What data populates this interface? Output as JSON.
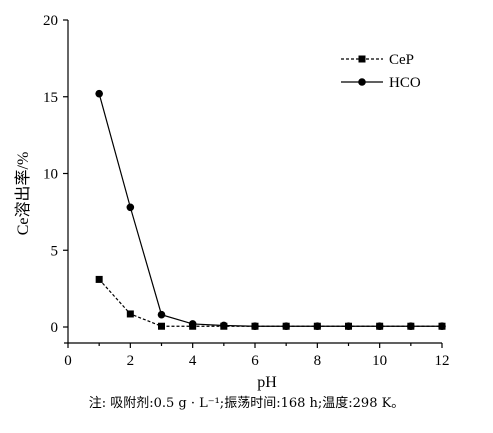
{
  "chart_data": {
    "type": "line",
    "xlabel": "pH",
    "ylabel": "Ce溶出率/%",
    "xlim": [
      0,
      12
    ],
    "ylim": [
      0,
      20
    ],
    "x_ticks": [
      0,
      2,
      4,
      6,
      8,
      10,
      12
    ],
    "y_ticks": [
      0,
      5,
      10,
      15,
      20
    ],
    "legend_position": "top-right",
    "grid": false,
    "series": [
      {
        "name": "CeP",
        "line_style": "dashed",
        "marker": "square",
        "x": [
          1,
          2,
          3,
          4,
          5,
          6,
          7,
          8,
          9,
          10,
          11,
          12
        ],
        "y": [
          3.1,
          0.85,
          0.05,
          0.05,
          0.05,
          0.05,
          0.05,
          0.05,
          0.05,
          0.05,
          0.05,
          0.05
        ]
      },
      {
        "name": "HCO",
        "line_style": "solid",
        "marker": "circle",
        "x": [
          1,
          2,
          3,
          4,
          5,
          6,
          7,
          8,
          9,
          10,
          11,
          12
        ],
        "y": [
          15.2,
          7.8,
          0.8,
          0.2,
          0.1,
          0.05,
          0.05,
          0.05,
          0.05,
          0.05,
          0.05,
          0.05
        ]
      }
    ]
  },
  "note": "注: 吸附剂:0.5 g · L⁻¹;振荡时间:168 h;温度:298 K。"
}
